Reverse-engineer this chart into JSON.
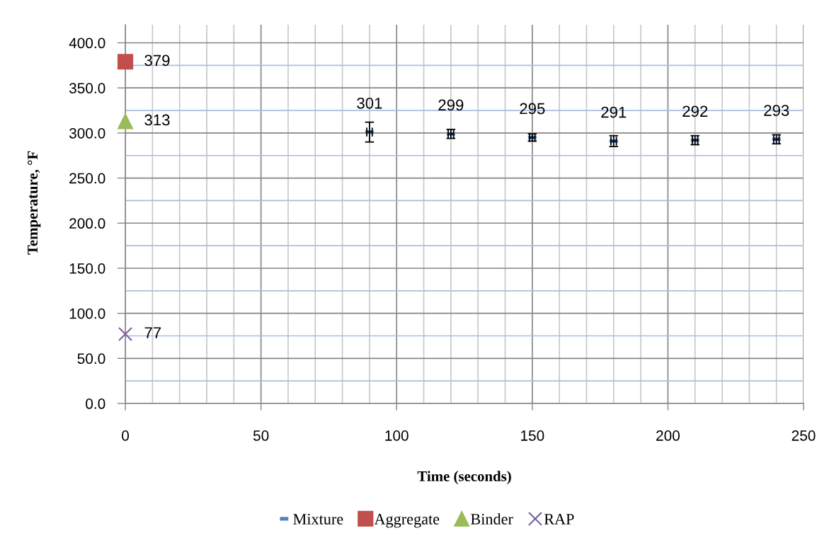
{
  "chart_data": {
    "type": "scatter",
    "xlabel": "Time (seconds)",
    "ylabel": "Temperature, °F",
    "xlim": [
      0,
      250
    ],
    "ylim": [
      0,
      420
    ],
    "xticks": [
      0,
      {
        "value": 10,
        "label": null
      },
      {
        "value": 20,
        "label": null
      },
      {
        "value": 30,
        "label": null
      },
      {
        "value": 40,
        "label": null
      },
      50,
      {
        "value": 60,
        "label": null
      },
      {
        "value": 70,
        "label": null
      },
      {
        "value": 80,
        "label": null
      },
      {
        "value": 90,
        "label": null
      },
      100,
      {
        "value": 110,
        "label": null
      },
      {
        "value": 120,
        "label": null
      },
      {
        "value": 130,
        "label": null
      },
      {
        "value": 140,
        "label": null
      },
      150,
      {
        "value": 160,
        "label": null
      },
      {
        "value": 170,
        "label": null
      },
      {
        "value": 180,
        "label": null
      },
      {
        "value": 190,
        "label": null
      },
      200,
      {
        "value": 210,
        "label": null
      },
      {
        "value": 220,
        "label": null
      },
      {
        "value": 230,
        "label": null
      },
      {
        "value": 240,
        "label": null
      },
      250
    ],
    "yticks": [
      {
        "value": 0,
        "label": "0.0"
      },
      {
        "value": 25,
        "label": null
      },
      {
        "value": 50,
        "label": "50.0"
      },
      {
        "value": 75,
        "label": null
      },
      {
        "value": 100,
        "label": "100.0"
      },
      {
        "value": 125,
        "label": null
      },
      {
        "value": 150,
        "label": "150.0"
      },
      {
        "value": 175,
        "label": null
      },
      {
        "value": 200,
        "label": "200.0"
      },
      {
        "value": 225,
        "label": null
      },
      {
        "value": 250,
        "label": "250.0"
      },
      {
        "value": 275,
        "label": null
      },
      {
        "value": 300,
        "label": "300.0"
      },
      {
        "value": 325,
        "label": null
      },
      {
        "value": 350,
        "label": "350.0"
      },
      {
        "value": 375,
        "label": null
      },
      {
        "value": 400,
        "label": "400.0"
      }
    ],
    "grid": true,
    "legend": "bottom",
    "data_labels": true,
    "series": [
      {
        "name": "Mixture",
        "color": "#4f81bd",
        "x": [
          90,
          120,
          150,
          180,
          210,
          240
        ],
        "values": [
          301,
          299,
          295,
          291,
          292,
          293
        ],
        "errors": [
          11,
          5,
          4,
          6,
          5,
          5
        ],
        "xerrors": [
          1,
          1,
          1,
          1,
          1,
          1
        ]
      },
      {
        "name": "Aggregate",
        "color": "#c0504d",
        "marker": "square",
        "x": [
          0
        ],
        "values": [
          379
        ]
      },
      {
        "name": "Binder",
        "color": "#9bbb59",
        "marker": "triangle",
        "x": [
          0
        ],
        "values": [
          313
        ]
      },
      {
        "name": "RAP",
        "color": "#8064a2",
        "marker": "cross",
        "x": [
          0
        ],
        "values": [
          77
        ]
      }
    ]
  }
}
